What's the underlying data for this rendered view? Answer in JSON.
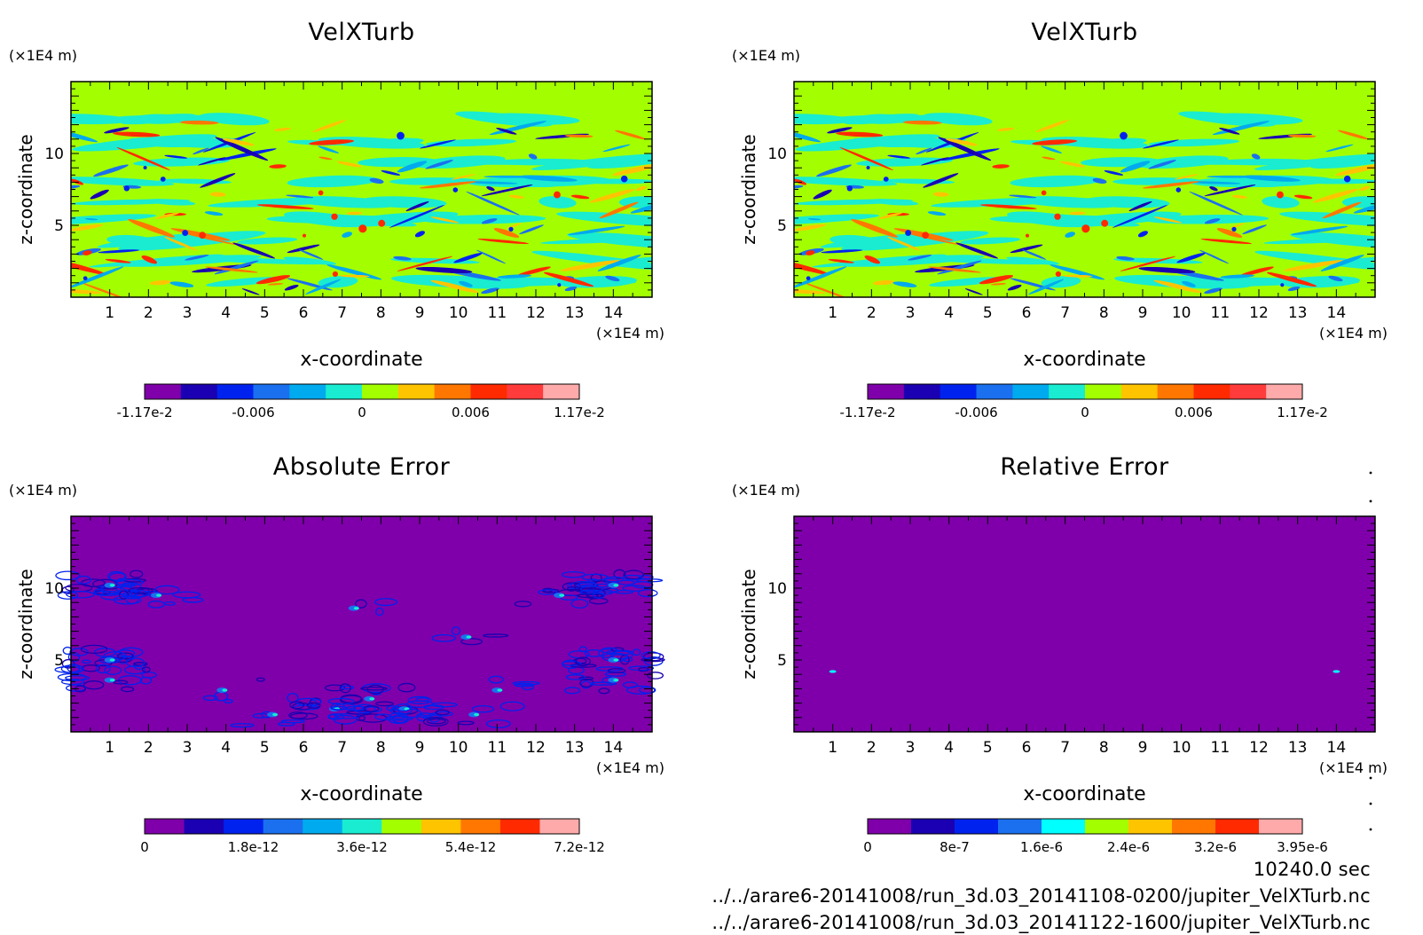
{
  "time_label": "10240.0 sec",
  "file_paths": [
    "../../arare6-20141008/run_3d.03_20141108-0200/jupiter_VelXTurb.nc",
    "../../arare6-20141008/run_3d.03_20141122-1600/jupiter_VelXTurb.nc"
  ],
  "colors": {
    "background": "#ffffff",
    "velocity_base": "#a3ff00",
    "error_base": "#7f00aa"
  },
  "chart_data": [
    {
      "type": "heatmap",
      "title": "VelXTurb",
      "xlabel": "x-coordinate",
      "ylabel": "z-coordinate",
      "x_unit": "(×1E4 m)",
      "z_unit": "(×1E4 m)",
      "xlim": [
        0,
        15
      ],
      "ylim": [
        0,
        15
      ],
      "x_ticks": [
        1,
        2,
        3,
        4,
        5,
        6,
        7,
        8,
        9,
        10,
        11,
        12,
        13,
        14
      ],
      "y_ticks": [
        5,
        10
      ],
      "field": "turbulent x-velocity, banded shear structures below z≈12, uniform above",
      "colorbar": {
        "colors": [
          "#7f00aa",
          "#1a00b2",
          "#0022ee",
          "#1a70ee",
          "#00aaee",
          "#19ecd0",
          "#a3ff00",
          "#ffc400",
          "#ff7700",
          "#ff2a00",
          "#ff3b3b",
          "#ffaaaa"
        ],
        "tick_labels": [
          "-1.17e-2",
          "-0.006",
          "0",
          "0.006",
          "1.17e-2"
        ],
        "range": [
          -0.0117,
          0.0117
        ]
      }
    },
    {
      "type": "heatmap",
      "title": "VelXTurb",
      "xlabel": "x-coordinate",
      "ylabel": "z-coordinate",
      "x_unit": "(×1E4 m)",
      "z_unit": "(×1E4 m)",
      "xlim": [
        0,
        15
      ],
      "ylim": [
        0,
        15
      ],
      "x_ticks": [
        1,
        2,
        3,
        4,
        5,
        6,
        7,
        8,
        9,
        10,
        11,
        12,
        13,
        14
      ],
      "y_ticks": [
        5,
        10
      ],
      "field": "turbulent x-velocity, banded shear structures below z≈12, uniform above",
      "colorbar": {
        "colors": [
          "#7f00aa",
          "#1a00b2",
          "#0022ee",
          "#1a70ee",
          "#00aaee",
          "#19ecd0",
          "#a3ff00",
          "#ffc400",
          "#ff7700",
          "#ff2a00",
          "#ff3b3b",
          "#ffaaaa"
        ],
        "tick_labels": [
          "-1.17e-2",
          "-0.006",
          "0",
          "0.006",
          "1.17e-2"
        ],
        "range": [
          -0.0117,
          0.0117
        ]
      }
    },
    {
      "type": "heatmap",
      "title": "Absolute Error",
      "xlabel": "x-coordinate",
      "ylabel": "z-coordinate",
      "x_unit": "(×1E4 m)",
      "z_unit": "(×1E4 m)",
      "xlim": [
        0,
        15
      ],
      "ylim": [
        0,
        15
      ],
      "x_ticks": [
        1,
        2,
        3,
        4,
        5,
        6,
        7,
        8,
        9,
        10,
        11,
        12,
        13,
        14
      ],
      "y_ticks": [
        5,
        10
      ],
      "field": "mostly zero; error patches near x≈1, x≈14 (z≈4–11) and near x≈7–9 (z≈1–2)",
      "colorbar": {
        "colors": [
          "#7f00aa",
          "#1a00b2",
          "#0022ee",
          "#1a70ee",
          "#00aaee",
          "#19ecd0",
          "#a3ff00",
          "#ffc400",
          "#ff7700",
          "#ff2a00",
          "#ffaaaa"
        ],
        "tick_labels": [
          "0",
          "1.8e-12",
          "3.6e-12",
          "5.4e-12",
          "7.2e-12"
        ],
        "range": [
          0,
          7.2e-12
        ]
      }
    },
    {
      "type": "heatmap",
      "title": "Relative Error",
      "xlabel": "x-coordinate",
      "ylabel": "z-coordinate",
      "x_unit": "(×1E4 m)",
      "z_unit": "(×1E4 m)",
      "xlim": [
        0,
        15
      ],
      "ylim": [
        0,
        15
      ],
      "x_ticks": [
        1,
        2,
        3,
        4,
        5,
        6,
        7,
        8,
        9,
        10,
        11,
        12,
        13,
        14
      ],
      "y_ticks": [
        5,
        10
      ],
      "field": "essentially zero everywhere; tiny spots near (1,4.2) and (14,4.2)",
      "colorbar": {
        "colors": [
          "#7f00aa",
          "#1a00b2",
          "#0022ee",
          "#1a70ee",
          "#00ffff",
          "#a3ff00",
          "#ffc400",
          "#ff7700",
          "#ff2a00",
          "#ffaaaa"
        ],
        "tick_labels": [
          "0",
          "8e-7",
          "1.6e-6",
          "2.4e-6",
          "3.2e-6",
          "3.95e-6"
        ],
        "range": [
          0,
          3.95e-06
        ]
      }
    }
  ]
}
